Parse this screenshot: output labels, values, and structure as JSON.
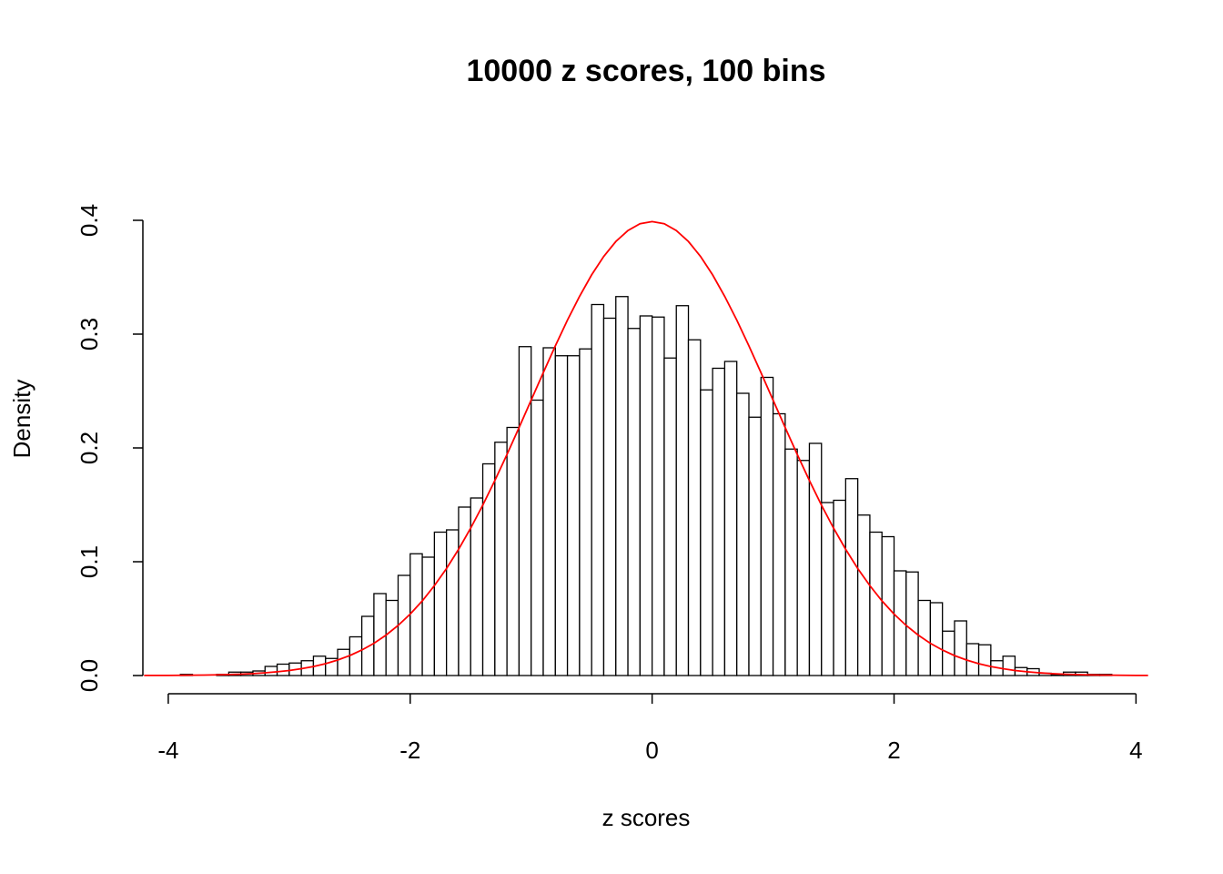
{
  "chart_data": {
    "type": "histogram",
    "title": "10000 z scores, 100 bins",
    "xlabel": "z scores",
    "ylabel": "Density",
    "bins": [
      -3.9,
      -3.8,
      -3.7,
      -3.6,
      -3.5,
      -3.4,
      -3.3,
      -3.2,
      -3.1,
      -3.0,
      -2.9,
      -2.8,
      -2.7,
      -2.6,
      -2.5,
      -2.4,
      -2.3,
      -2.2,
      -2.1,
      -2.0,
      -1.9,
      -1.8,
      -1.7,
      -1.6,
      -1.5,
      -1.4,
      -1.3,
      -1.2,
      -1.1,
      -1.0,
      -0.9,
      -0.8,
      -0.7,
      -0.6,
      -0.5,
      -0.4,
      -0.3,
      -0.2,
      -0.1,
      0,
      0.1,
      0.2,
      0.3,
      0.4,
      0.5,
      0.6,
      0.7,
      0.8,
      0.9,
      1.0,
      1.1,
      1.2,
      1.3,
      1.4,
      1.5,
      1.6,
      1.7,
      1.8,
      1.9,
      2.0,
      2.1,
      2.2,
      2.3,
      2.4,
      2.5,
      2.6,
      2.7,
      2.8,
      2.9,
      3.0,
      3.1,
      3.2,
      3.3,
      3.4,
      3.5,
      3.6,
      3.7,
      3.8
    ],
    "values": [
      0.001,
      0,
      0,
      0.001,
      0.003,
      0.003,
      0.004,
      0.008,
      0.01,
      0.011,
      0.013,
      0.017,
      0.015,
      0.023,
      0.034,
      0.052,
      0.072,
      0.066,
      0.088,
      0.107,
      0.104,
      0.126,
      0.128,
      0.148,
      0.156,
      0.186,
      0.205,
      0.218,
      0.289,
      0.242,
      0.288,
      0.281,
      0.281,
      0.287,
      0.326,
      0.314,
      0.333,
      0.305,
      0.316,
      0.315,
      0.279,
      0.325,
      0.295,
      0.251,
      0.27,
      0.276,
      0.248,
      0.227,
      0.262,
      0.23,
      0.199,
      0.189,
      0.204,
      0.152,
      0.154,
      0.173,
      0.141,
      0.126,
      0.122,
      0.092,
      0.091,
      0.066,
      0.064,
      0.039,
      0.048,
      0.028,
      0.027,
      0.013,
      0.017,
      0.007,
      0.006,
      0.002,
      0.001,
      0.003,
      0.003,
      0.001,
      0.001
    ],
    "bar_fill": "#ffffff",
    "bar_stroke": "#000000",
    "curve": {
      "color": "#ff0000",
      "x": [
        -4.2,
        -4.1,
        -4.0,
        -3.9,
        -3.8,
        -3.7,
        -3.6,
        -3.5,
        -3.4,
        -3.3,
        -3.2,
        -3.1,
        -3.0,
        -2.9,
        -2.8,
        -2.7,
        -2.6,
        -2.5,
        -2.4,
        -2.3,
        -2.2,
        -2.1,
        -2.0,
        -1.9,
        -1.8,
        -1.7,
        -1.6,
        -1.5,
        -1.4,
        -1.3,
        -1.2,
        -1.1,
        -1.0,
        -0.9,
        -0.8,
        -0.7,
        -0.6,
        -0.5,
        -0.4,
        -0.3,
        -0.2,
        -0.1,
        0,
        0.1,
        0.2,
        0.3,
        0.4,
        0.5,
        0.6,
        0.7,
        0.8,
        0.9,
        1.0,
        1.1,
        1.2,
        1.3,
        1.4,
        1.5,
        1.6,
        1.7,
        1.8,
        1.9,
        2.0,
        2.1,
        2.2,
        2.3,
        2.4,
        2.5,
        2.6,
        2.7,
        2.8,
        2.9,
        3.0,
        3.1,
        3.2,
        3.3,
        3.4,
        3.5,
        3.6,
        3.7,
        3.8,
        3.9,
        4.0,
        4.1
      ],
      "values": [
        0.0001,
        0.0001,
        0.0001,
        0.0002,
        0.0003,
        0.0004,
        0.0006,
        0.0009,
        0.0012,
        0.0017,
        0.0024,
        0.0033,
        0.0044,
        0.006,
        0.0079,
        0.0104,
        0.0136,
        0.0175,
        0.0224,
        0.0283,
        0.0355,
        0.044,
        0.054,
        0.0656,
        0.079,
        0.094,
        0.1109,
        0.1295,
        0.1497,
        0.1714,
        0.1942,
        0.2179,
        0.242,
        0.2661,
        0.2897,
        0.3123,
        0.3332,
        0.3521,
        0.3683,
        0.3814,
        0.391,
        0.397,
        0.3989,
        0.397,
        0.391,
        0.3814,
        0.3683,
        0.3521,
        0.3332,
        0.3123,
        0.2897,
        0.2661,
        0.242,
        0.2179,
        0.1942,
        0.1714,
        0.1497,
        0.1295,
        0.1109,
        0.094,
        0.079,
        0.0656,
        0.054,
        0.044,
        0.0355,
        0.0283,
        0.0224,
        0.0175,
        0.0136,
        0.0104,
        0.0079,
        0.006,
        0.0044,
        0.0033,
        0.0024,
        0.0017,
        0.0012,
        0.0009,
        0.0006,
        0.0004,
        0.0003,
        0.0002,
        0.0001,
        0.0001
      ]
    },
    "xlim": [
      -4.21,
      4.11
    ],
    "ylim": [
      0,
      0.4
    ],
    "xticks": [
      -4,
      -2,
      0,
      2,
      4
    ],
    "yticks": [
      {
        "value": 0,
        "label": "0.0"
      },
      0.1,
      0.2,
      0.3,
      0.4
    ]
  }
}
